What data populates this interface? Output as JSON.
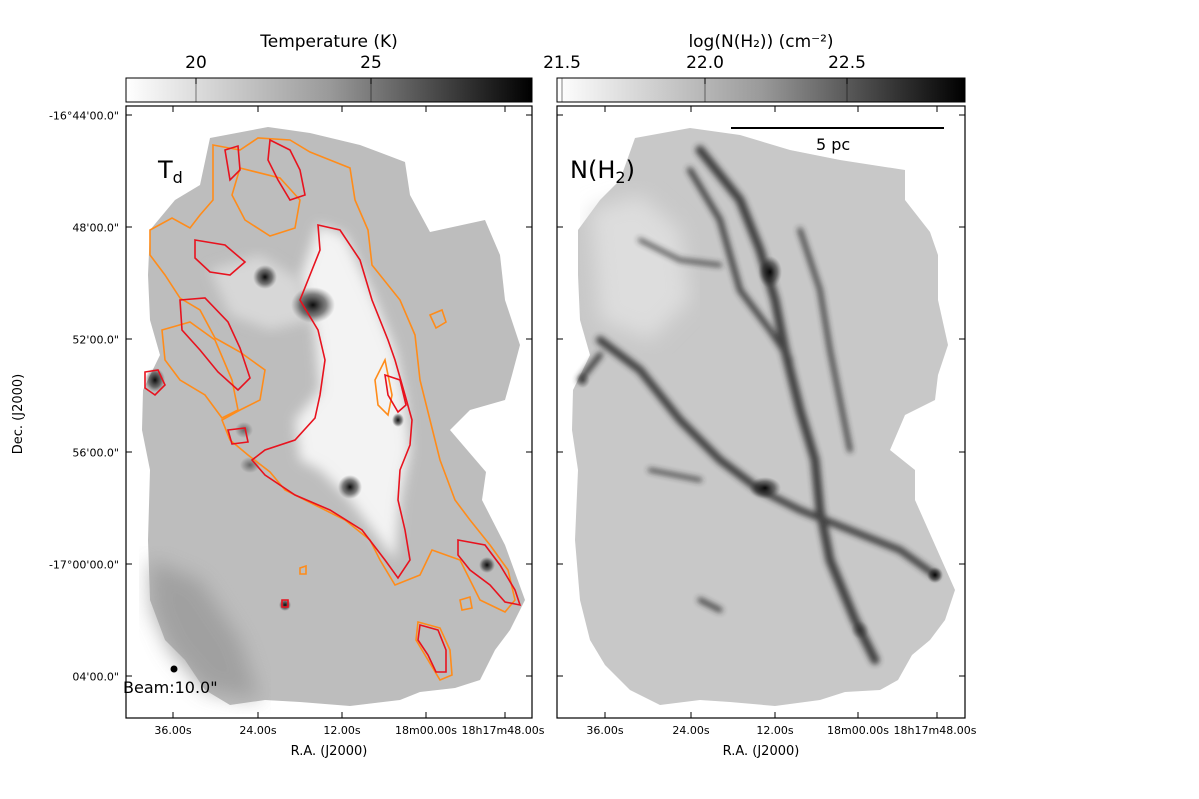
{
  "colorbars": {
    "temperature": {
      "title": "Temperature (K)",
      "ticks": [
        "20",
        "25"
      ]
    },
    "column_density": {
      "title": "log(N(H₂)) (cm⁻²)",
      "ticks": [
        "21.5",
        "22.0",
        "22.5"
      ]
    }
  },
  "panels": {
    "temperature": {
      "label_main": "T",
      "label_sub": "d",
      "beam_label": "Beam:10.0\""
    },
    "column_density": {
      "label_main": "N(H",
      "label_sub": "2",
      "label_end": ")",
      "scalebar_label": "5 pc"
    }
  },
  "axes": {
    "dec_title": "Dec. (J2000)",
    "ra_title": "R.A. (J2000)",
    "dec_ticks": [
      "-16°44'00.0\"",
      "48'00.0\"",
      "52'00.0\"",
      "56'00.0\"",
      "-17°00'00.0\"",
      "04'00.0\""
    ],
    "ra_ticks": [
      "36.00s",
      "24.00s",
      "12.00s",
      "18m00.00s",
      "18h17m48.00s"
    ]
  },
  "colors": {
    "contour_outer": "#ff8c1a",
    "contour_inner": "#e8121e",
    "frame": "#000000"
  }
}
